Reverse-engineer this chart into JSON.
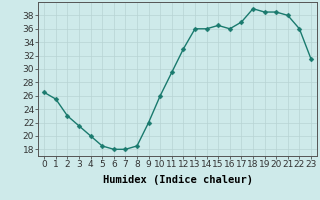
{
  "x": [
    0,
    1,
    2,
    3,
    4,
    5,
    6,
    7,
    8,
    9,
    10,
    11,
    12,
    13,
    14,
    15,
    16,
    17,
    18,
    19,
    20,
    21,
    22,
    23
  ],
  "y": [
    26.5,
    25.5,
    23,
    21.5,
    20,
    18.5,
    18,
    18,
    18.5,
    22,
    26,
    29.5,
    33,
    36,
    36,
    36.5,
    36,
    37,
    39,
    38.5,
    38.5,
    38,
    36,
    31.5
  ],
  "line_color": "#1a7a6e",
  "marker": "D",
  "marker_size": 2.5,
  "bg_color": "#ceeaea",
  "grid_color": "#b8d4d4",
  "xlabel": "Humidex (Indice chaleur)",
  "xlim": [
    -0.5,
    23.5
  ],
  "ylim": [
    17,
    40
  ],
  "yticks": [
    18,
    20,
    22,
    24,
    26,
    28,
    30,
    32,
    34,
    36,
    38
  ],
  "xticks": [
    0,
    1,
    2,
    3,
    4,
    5,
    6,
    7,
    8,
    9,
    10,
    11,
    12,
    13,
    14,
    15,
    16,
    17,
    18,
    19,
    20,
    21,
    22,
    23
  ],
  "xlabel_fontsize": 7.5,
  "tick_fontsize": 6.5,
  "line_width": 1.0
}
